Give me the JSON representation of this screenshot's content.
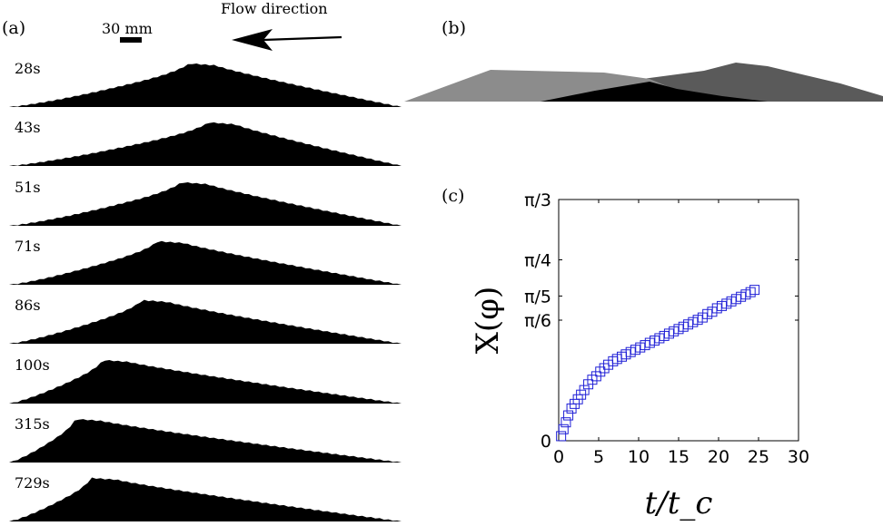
{
  "panel_a": {
    "label": "(a)",
    "scale_bar_label": "30 mm",
    "flow_label": "Flow direction",
    "times": [
      "28s",
      "43s",
      "51s",
      "71s",
      "86s",
      "100s",
      "315s",
      "729s"
    ],
    "crest_fraction": [
      0.46,
      0.51,
      0.44,
      0.38,
      0.34,
      0.24,
      0.17,
      0.21
    ]
  },
  "panel_b": {
    "label": "(b)",
    "colors": {
      "early": "#8c8c8c",
      "middle": "#000000",
      "late": "#5a5a5a"
    }
  },
  "panel_c": {
    "label": "(c)"
  },
  "chart_data": {
    "type": "scatter",
    "xlabel": "t/t_c",
    "ylabel": "X(φ)",
    "xlim": [
      0,
      30
    ],
    "ylim": [
      0,
      1.0472
    ],
    "x_ticks": [
      0,
      5,
      10,
      15,
      20,
      25,
      30
    ],
    "x_tick_labels": [
      "0",
      "5",
      "10",
      "15",
      "20",
      "25",
      "30"
    ],
    "y_ticks": [
      0,
      0.5236,
      0.6283,
      0.7854,
      1.0472
    ],
    "y_tick_labels": [
      "0",
      "π/6",
      "π/5",
      "π/4",
      "π/3"
    ],
    "grid": false,
    "marker": "square",
    "marker_color": "#1f1fd6",
    "series": [
      {
        "x": [
          0.3,
          0.6,
          0.9,
          1.2,
          1.6,
          2.0,
          2.4,
          2.8,
          3.2,
          3.7,
          4.2,
          4.7,
          5.2,
          5.7,
          6.2,
          6.8,
          7.3,
          7.9,
          8.4,
          9.0,
          9.6,
          10.2,
          10.8,
          11.4,
          12.0,
          12.6,
          13.2,
          13.8,
          14.4,
          15.0,
          15.6,
          16.2,
          16.8,
          17.4,
          18.0,
          18.6,
          19.2,
          19.8,
          20.4,
          21.0,
          21.6,
          22.2,
          22.8,
          23.4,
          24.0,
          24.5
        ],
        "y": [
          0.02,
          0.05,
          0.08,
          0.11,
          0.14,
          0.16,
          0.18,
          0.2,
          0.22,
          0.245,
          0.265,
          0.28,
          0.3,
          0.315,
          0.33,
          0.345,
          0.355,
          0.365,
          0.375,
          0.385,
          0.395,
          0.405,
          0.415,
          0.425,
          0.435,
          0.445,
          0.455,
          0.465,
          0.475,
          0.485,
          0.495,
          0.505,
          0.515,
          0.525,
          0.535,
          0.55,
          0.56,
          0.575,
          0.585,
          0.595,
          0.605,
          0.615,
          0.625,
          0.635,
          0.645,
          0.655
        ]
      }
    ]
  }
}
